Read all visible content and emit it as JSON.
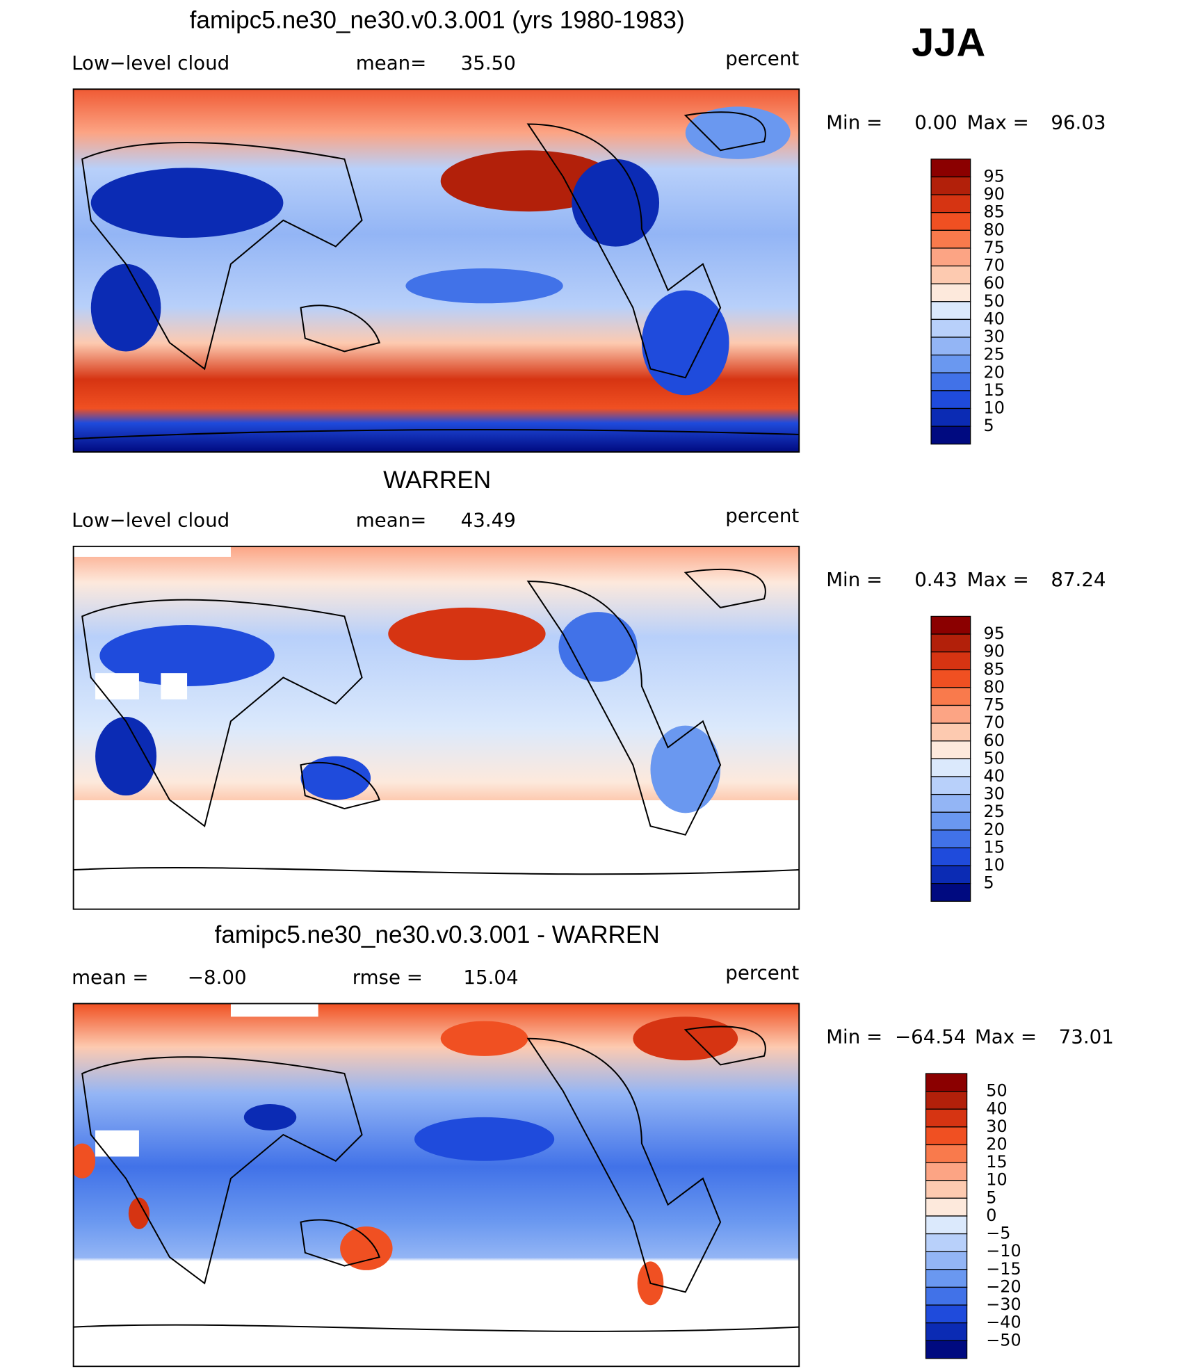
{
  "season": "JJA",
  "panels": [
    {
      "title": "famipc5.ne30_ne30.v0.3.001 (yrs 1980-1983)",
      "left_label": "Low−level cloud",
      "stat1_label": "mean=",
      "stat1": "35.50",
      "units": "percent",
      "min_label": "Min =",
      "min": "0.00",
      "max_label": "Max =",
      "max": "96.03",
      "colorbar": {
        "labels": [
          "95",
          "90",
          "85",
          "80",
          "75",
          "70",
          "60",
          "50",
          "40",
          "30",
          "25",
          "20",
          "15",
          "10",
          "5"
        ],
        "colors": [
          "#8b0000",
          "#b2200a",
          "#d63412",
          "#f05022",
          "#f97a4c",
          "#fca484",
          "#fdcab0",
          "#fde9dc",
          "#dbe9fc",
          "#b8d0fa",
          "#93b5f5",
          "#6a98f0",
          "#4172e8",
          "#1f4bdc",
          "#0b2bb4",
          "#000a80"
        ]
      }
    },
    {
      "title": "WARREN",
      "left_label": "Low−level cloud",
      "stat1_label": "mean=",
      "stat1": "43.49",
      "units": "percent",
      "min_label": "Min =",
      "min": "0.43",
      "max_label": "Max =",
      "max": "87.24",
      "colorbar": {
        "labels": [
          "95",
          "90",
          "85",
          "80",
          "75",
          "70",
          "60",
          "50",
          "40",
          "30",
          "25",
          "20",
          "15",
          "10",
          "5"
        ],
        "colors": [
          "#8b0000",
          "#b2200a",
          "#d63412",
          "#f05022",
          "#f97a4c",
          "#fca484",
          "#fdcab0",
          "#fde9dc",
          "#dbe9fc",
          "#b8d0fa",
          "#93b5f5",
          "#6a98f0",
          "#4172e8",
          "#1f4bdc",
          "#0b2bb4",
          "#000a80"
        ]
      }
    },
    {
      "title": "famipc5.ne30_ne30.v0.3.001 - WARREN",
      "left_label": "mean =",
      "left_value": "−8.00",
      "stat1_label": "rmse =",
      "stat1": "15.04",
      "units": "percent",
      "min_label": "Min =",
      "min": "−64.54",
      "max_label": "Max =",
      "max": "73.01",
      "colorbar": {
        "labels": [
          "50",
          "40",
          "30",
          "20",
          "15",
          "10",
          "5",
          "0",
          "−5",
          "−10",
          "−15",
          "−20",
          "−30",
          "−40",
          "−50"
        ],
        "colors": [
          "#8b0000",
          "#b2200a",
          "#d63412",
          "#f05022",
          "#f97a4c",
          "#fca484",
          "#fdcab0",
          "#fde9dc",
          "#dbe9fc",
          "#b8d0fa",
          "#93b5f5",
          "#6a98f0",
          "#4172e8",
          "#1f4bdc",
          "#0b2bb4",
          "#000a80"
        ]
      }
    }
  ]
}
